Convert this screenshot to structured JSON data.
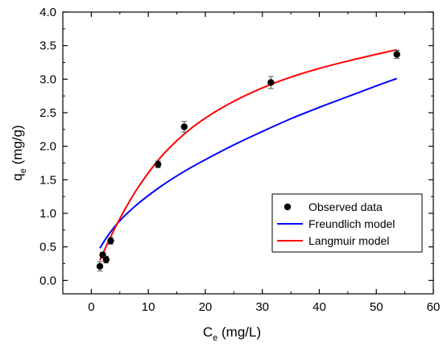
{
  "chart_data": {
    "type": "scatter",
    "xlabel": {
      "main": "C",
      "sub": "e",
      "unit": " (mg/L)"
    },
    "ylabel": {
      "main": "q",
      "sub": "e",
      "unit": " (mg/g)"
    },
    "xlim": [
      -5,
      60
    ],
    "ylim": [
      -0.2,
      4.0
    ],
    "x_ticks": [
      0,
      10,
      20,
      30,
      40,
      50,
      60
    ],
    "y_ticks": [
      0.0,
      0.5,
      1.0,
      1.5,
      2.0,
      2.5,
      3.0,
      3.5,
      4.0
    ],
    "y_tick_labels": [
      "0.0",
      "0.5",
      "1.0",
      "1.5",
      "2.0",
      "2.5",
      "3.0",
      "3.5",
      "4.0"
    ],
    "grid": false,
    "legend_position": "bottom-right",
    "series": [
      {
        "name": "Observed data",
        "kind": "points",
        "color": "#000000",
        "x": [
          1.5,
          2.0,
          2.6,
          3.4,
          11.7,
          16.3,
          31.5,
          53.6
        ],
        "y": [
          0.21,
          0.38,
          0.31,
          0.59,
          1.73,
          2.29,
          2.95,
          3.37
        ],
        "error": [
          0.07,
          0.04,
          0.05,
          0.05,
          0.05,
          0.08,
          0.09,
          0.06
        ]
      },
      {
        "name": "Freundlich model",
        "kind": "line",
        "color": "#0000ff",
        "x": [
          1.5,
          3,
          5,
          8,
          12,
          16,
          20,
          25,
          30,
          35,
          40,
          45,
          50,
          53.6
        ],
        "y": [
          0.48,
          0.68,
          0.89,
          1.13,
          1.39,
          1.61,
          1.8,
          2.02,
          2.22,
          2.41,
          2.58,
          2.74,
          2.9,
          3.01
        ]
      },
      {
        "name": "Langmuir model",
        "kind": "line",
        "color": "#ff0000",
        "x": [
          1.5,
          3,
          5,
          8,
          12,
          16,
          20,
          25,
          30,
          35,
          40,
          45,
          50,
          53.6
        ],
        "y": [
          0.3,
          0.58,
          0.92,
          1.36,
          1.82,
          2.16,
          2.42,
          2.67,
          2.87,
          3.03,
          3.16,
          3.27,
          3.37,
          3.44
        ]
      }
    ]
  }
}
